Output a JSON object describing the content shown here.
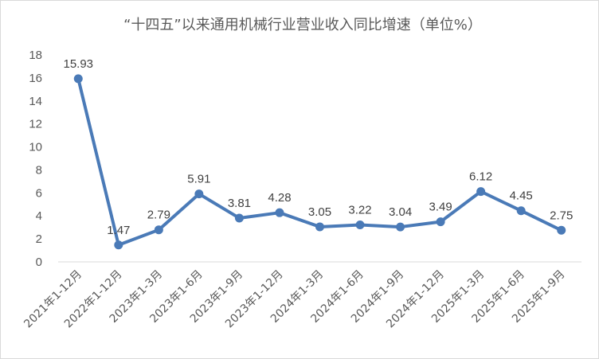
{
  "chart_data": {
    "type": "line",
    "title": "“十四五”以来通用机械行业营业收入同比增速（单位%）",
    "xlabel": "",
    "ylabel": "",
    "ylim": [
      0,
      18
    ],
    "yticks": [
      0,
      2,
      4,
      6,
      8,
      10,
      12,
      14,
      16,
      18
    ],
    "grid": false,
    "legend": "none",
    "line_color": "#4a7ab7",
    "categories": [
      "2021年1-12月",
      "2022年1-12月",
      "2023年1-3月",
      "2023年1-6月",
      "2023年1-9月",
      "2023年1-12月",
      "2024年1-3月",
      "2024年1-6月",
      "2024年1-9月",
      "2024年1-12月",
      "2025年1-3月",
      "2025年1-6月",
      "2025年1-9月"
    ],
    "values": [
      15.93,
      1.47,
      2.79,
      5.91,
      3.81,
      4.28,
      3.05,
      3.22,
      3.04,
      3.49,
      6.12,
      4.45,
      2.75
    ],
    "data_labels": [
      "15.93",
      "1.47",
      "2.79",
      "5.91",
      "3.81",
      "4.28",
      "3.05",
      "3.22",
      "3.04",
      "3.49",
      "6.12",
      "4.45",
      "2.75"
    ]
  }
}
